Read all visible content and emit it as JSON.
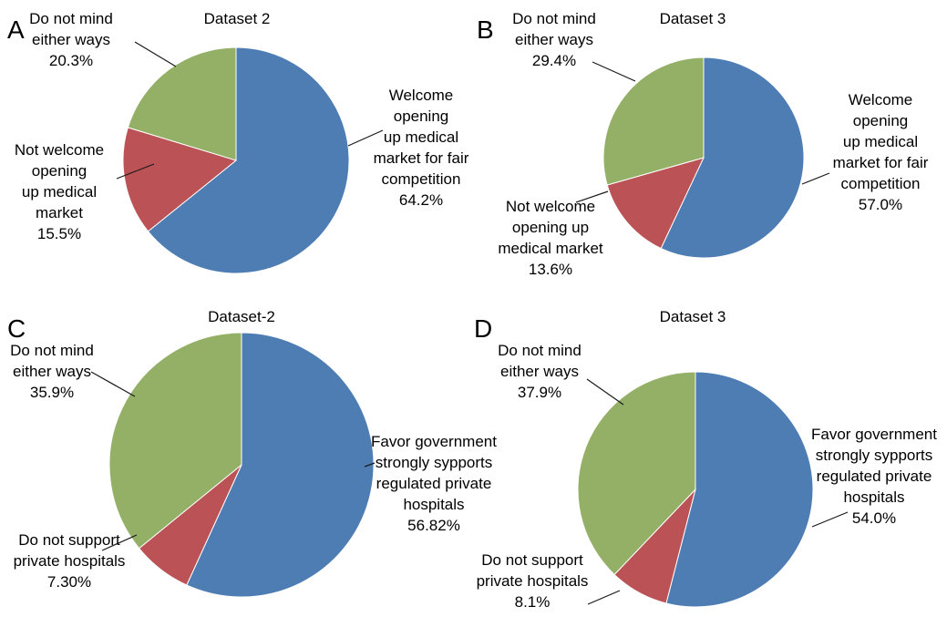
{
  "chart_data": [
    {
      "type": "pie",
      "panel_letter": "A",
      "title": "Dataset 2",
      "series": [
        {
          "name": "Welcome opening up medical market for fair competition",
          "value": 64.2,
          "value_label": "64.2%",
          "label_lines": [
            "Welcome",
            "opening",
            "up medical",
            "market for fair",
            "competition",
            "64.2%"
          ],
          "color": "#4e7db3"
        },
        {
          "name": "Not welcome opening up medical market",
          "value": 15.5,
          "value_label": "15.5%",
          "label_lines": [
            "Not welcome",
            "opening",
            "up medical",
            "market",
            "15.5%"
          ],
          "color": "#bb5255"
        },
        {
          "name": "Do not mind either ways",
          "value": 20.3,
          "value_label": "20.3%",
          "label_lines": [
            "Do not mind",
            "either ways",
            "20.3%"
          ],
          "color": "#93b066"
        }
      ]
    },
    {
      "type": "pie",
      "panel_letter": "B",
      "title": "Dataset 3",
      "series": [
        {
          "name": "Welcome opening up medical market for fair competition",
          "value": 57.0,
          "value_label": "57.0%",
          "label_lines": [
            "Welcome",
            "opening",
            "up medical",
            "market for fair",
            "competition",
            "57.0%"
          ],
          "color": "#4e7db3"
        },
        {
          "name": "Not welcome opening up medical market",
          "value": 13.6,
          "value_label": "13.6%",
          "label_lines": [
            "Not welcome",
            "opening up",
            "medical market",
            "13.6%"
          ],
          "color": "#bb5255"
        },
        {
          "name": "Do not mind either ways",
          "value": 29.4,
          "value_label": "29.4%",
          "label_lines": [
            "Do not mind",
            "either ways",
            "29.4%"
          ],
          "color": "#93b066"
        }
      ]
    },
    {
      "type": "pie",
      "panel_letter": "C",
      "title": "Dataset-2",
      "series": [
        {
          "name": "Favor government strongly sypports regulated private hospitals",
          "value": 56.82,
          "value_label": "56.82%",
          "label_lines": [
            "Favor government",
            "strongly sypports",
            "regulated private",
            "hospitals",
            "56.82%"
          ],
          "color": "#4e7db3"
        },
        {
          "name": "Do not support private hospitals",
          "value": 7.3,
          "value_label": "7.30%",
          "label_lines": [
            "Do not support",
            "private hospitals",
            "7.30%"
          ],
          "color": "#bb5255"
        },
        {
          "name": "Do not mind either ways",
          "value": 35.9,
          "value_label": "35.9%",
          "label_lines": [
            "Do not mind",
            "either ways",
            "35.9%"
          ],
          "color": "#93b066"
        }
      ]
    },
    {
      "type": "pie",
      "panel_letter": "D",
      "title": "Dataset 3",
      "series": [
        {
          "name": "Favor government strongly sypports regulated private hospitals",
          "value": 54.0,
          "value_label": "54.0%",
          "label_lines": [
            "Favor government",
            "strongly sypports",
            "regulated private",
            "hospitals",
            "54.0%"
          ],
          "color": "#4e7db3"
        },
        {
          "name": "Do not support private hospitals",
          "value": 8.1,
          "value_label": "8.1%",
          "label_lines": [
            "Do not support",
            "private hospitals",
            "8.1%"
          ],
          "color": "#bb5255"
        },
        {
          "name": "Do not mind either ways",
          "value": 37.9,
          "value_label": "37.9%",
          "label_lines": [
            "Do not mind",
            "either ways",
            "37.9%"
          ],
          "color": "#93b066"
        }
      ]
    }
  ]
}
